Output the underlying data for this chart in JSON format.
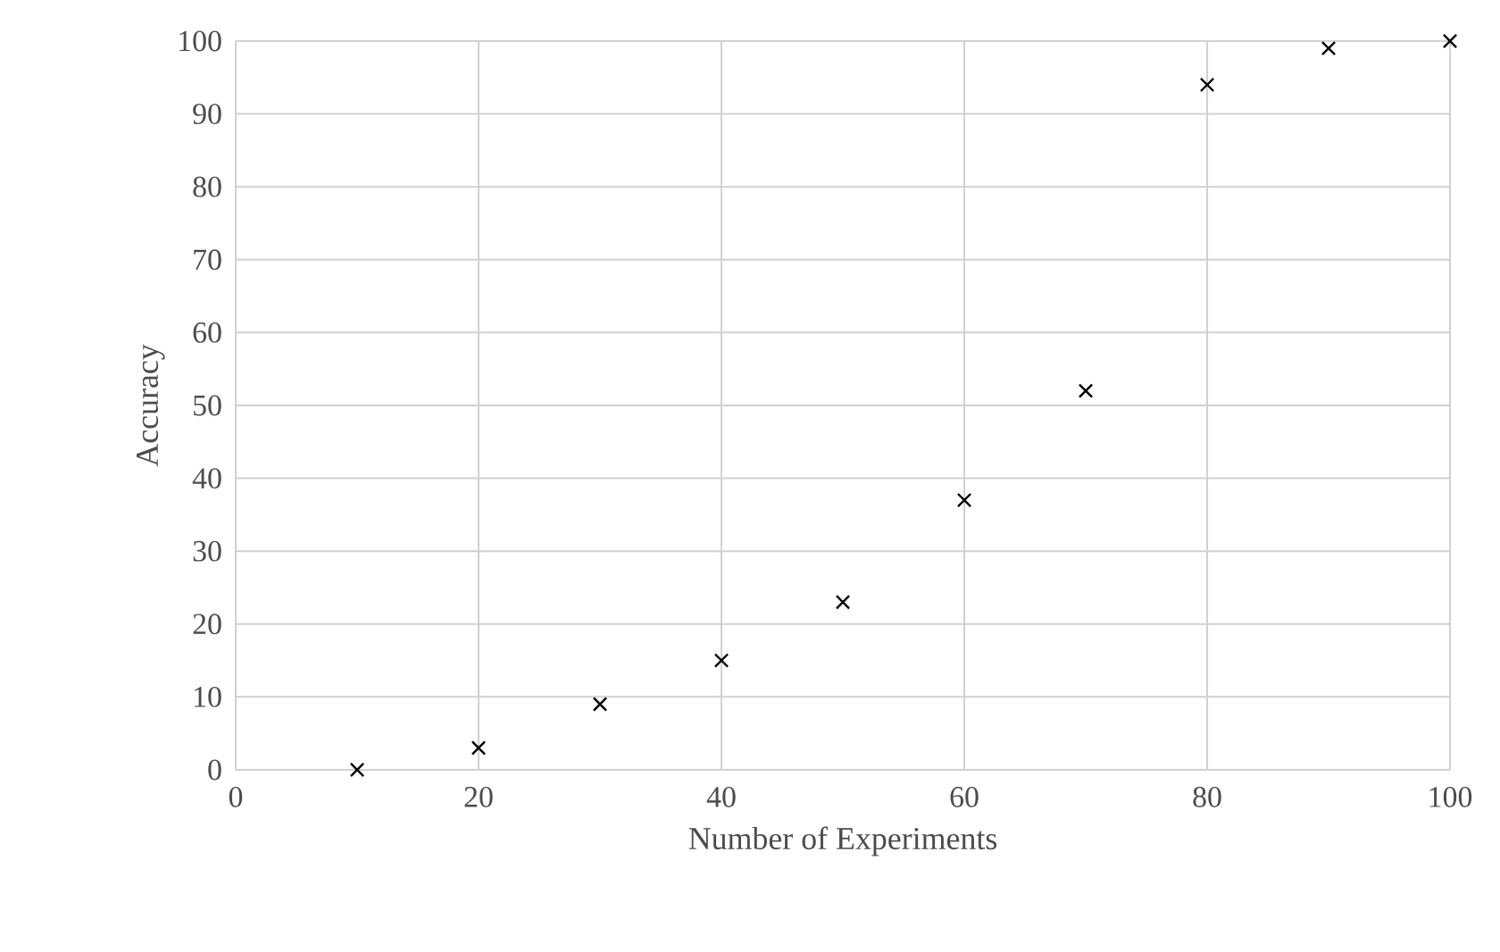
{
  "chart_data": {
    "type": "scatter",
    "xlabel": "Number of Experiments",
    "ylabel": "Accuracy",
    "x": [
      10,
      20,
      30,
      40,
      50,
      60,
      70,
      80,
      90,
      100
    ],
    "values": [
      0,
      3,
      9,
      15,
      23,
      37,
      52,
      94,
      99,
      100
    ],
    "color": "#000000",
    "marker": "cross",
    "xlim": [
      0,
      100
    ],
    "xticks": [
      0,
      20,
      40,
      60,
      80,
      100
    ],
    "ylim": [
      0,
      100
    ],
    "yticks": [
      0,
      10,
      20,
      30,
      40,
      50,
      60,
      70,
      80,
      90,
      100
    ],
    "grid": true
  }
}
